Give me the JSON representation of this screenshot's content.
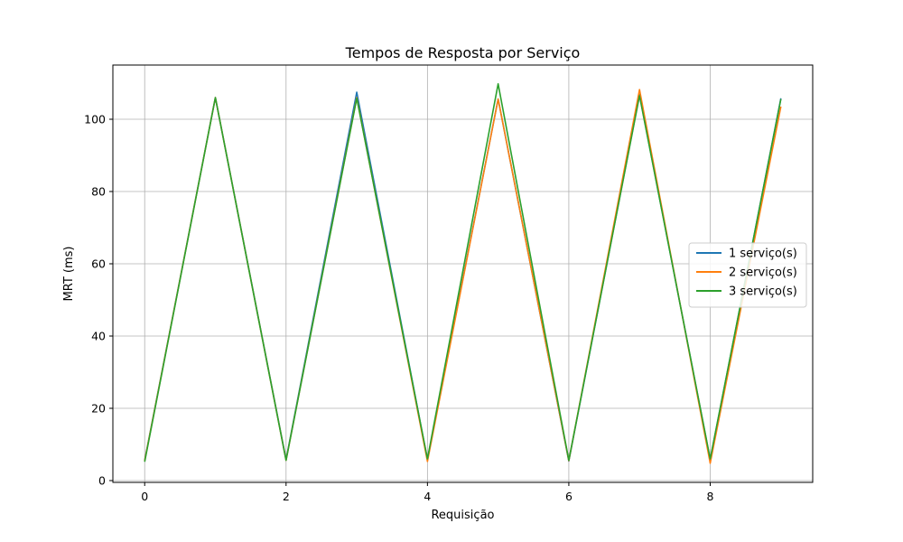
{
  "chart_data": {
    "type": "line",
    "title": "Tempos de Resposta por Serviço",
    "xlabel": "Requisição",
    "ylabel": "MRT (ms)",
    "x": [
      0,
      1,
      2,
      3,
      4,
      5,
      6,
      7,
      8,
      9
    ],
    "xlim": [
      -0.45,
      9.45
    ],
    "ylim": [
      -0.5,
      115
    ],
    "xticks": [
      0,
      2,
      4,
      6,
      8
    ],
    "yticks": [
      0,
      20,
      40,
      60,
      80,
      100
    ],
    "grid": true,
    "legend_position": "center-right",
    "series": [
      {
        "name": "1 serviço(s)",
        "color": "#1f77b4",
        "values": [
          5.6,
          106.0,
          5.8,
          107.5,
          5.8,
          105.6,
          5.4,
          106.8,
          5.8,
          105.8
        ]
      },
      {
        "name": "2 serviço(s)",
        "color": "#ff7f0e",
        "values": [
          5.5,
          106.0,
          5.6,
          106.0,
          5.3,
          105.6,
          5.5,
          108.2,
          4.8,
          103.5
        ]
      },
      {
        "name": "3 serviço(s)",
        "color": "#2ca02c",
        "values": [
          5.2,
          106.0,
          5.6,
          105.8,
          6.0,
          109.8,
          5.6,
          106.5,
          6.0,
          105.6
        ]
      }
    ]
  }
}
